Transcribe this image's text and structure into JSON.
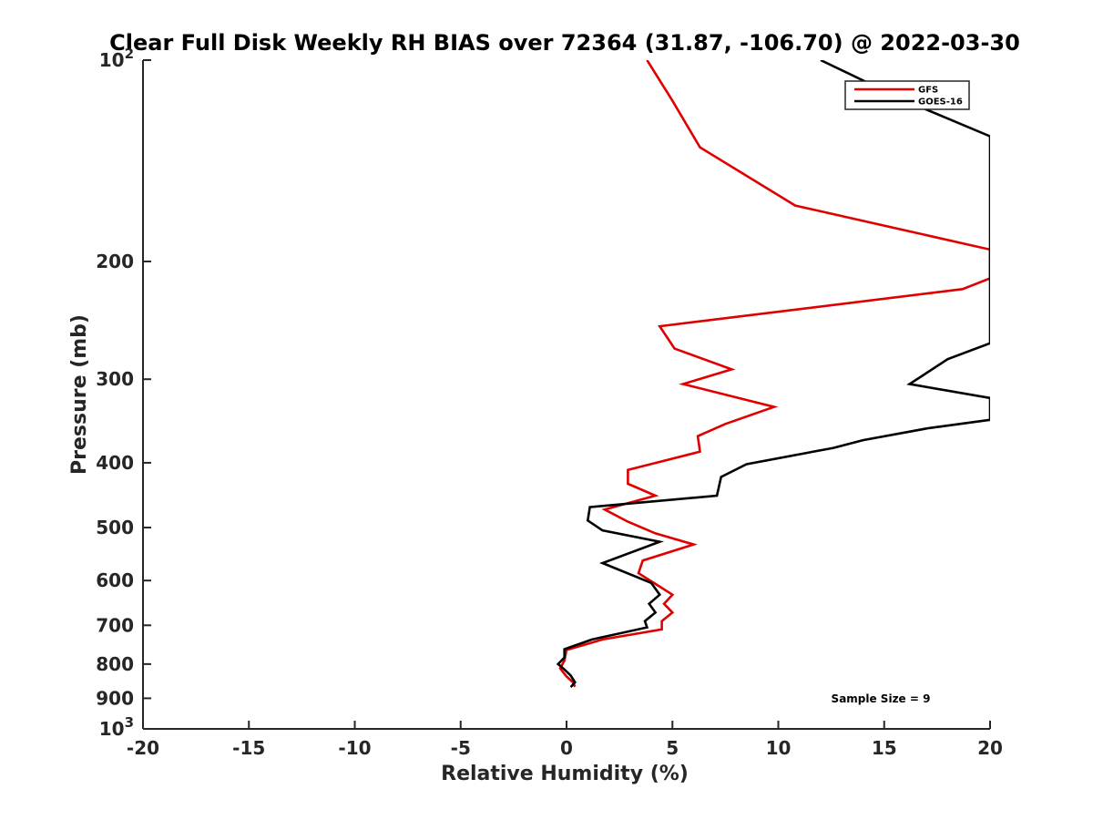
{
  "chart_data": {
    "type": "line",
    "title": "Clear Full Disk Weekly RH BIAS over 72364 (31.87, -106.70) @ 2022-03-30",
    "xlabel": "Relative Humidity (%)",
    "ylabel": "Pressure (mb)",
    "xlim": [
      -20,
      20
    ],
    "ylim": [
      100,
      1000
    ],
    "y_scale": "log",
    "y_reversed": true,
    "x_ticks": [
      -20,
      -15,
      -10,
      -5,
      0,
      5,
      10,
      15,
      20
    ],
    "x_tick_labels": [
      "-20",
      "-15",
      "-10",
      "-5",
      "0",
      "5",
      "10",
      "15",
      "20"
    ],
    "y_ticks": [
      100,
      200,
      300,
      400,
      500,
      600,
      700,
      800,
      900,
      1000
    ],
    "y_tick_labels": [
      {
        "base": "10",
        "exp": "2"
      },
      {
        "base": "200",
        "exp": ""
      },
      {
        "base": "300",
        "exp": ""
      },
      {
        "base": "400",
        "exp": ""
      },
      {
        "base": "500",
        "exp": ""
      },
      {
        "base": "600",
        "exp": ""
      },
      {
        "base": "700",
        "exp": ""
      },
      {
        "base": "800",
        "exp": ""
      },
      {
        "base": "900",
        "exp": ""
      },
      {
        "base": "10",
        "exp": "3"
      }
    ],
    "grid": false,
    "legend_position": "top-right",
    "annotation": "Sample Size = 9",
    "series": [
      {
        "name": "GFS",
        "color": "#e00000",
        "points": [
          [
            3.8,
            100
          ],
          [
            5,
            115
          ],
          [
            6.3,
            135
          ],
          [
            10.8,
            165
          ],
          [
            20,
            192
          ],
          [
            20,
            212
          ],
          [
            18.7,
            220
          ],
          [
            4.4,
            250
          ],
          [
            5.1,
            270
          ],
          [
            7.8,
            290
          ],
          [
            5.5,
            305
          ],
          [
            9.8,
            330
          ],
          [
            7.5,
            350
          ],
          [
            6.2,
            365
          ],
          [
            6.3,
            385
          ],
          [
            2.9,
            410
          ],
          [
            2.9,
            430
          ],
          [
            4.2,
            448
          ],
          [
            1.8,
            470
          ],
          [
            2.9,
            490
          ],
          [
            4.2,
            510
          ],
          [
            6.0,
            530
          ],
          [
            3.6,
            560
          ],
          [
            3.4,
            585
          ],
          [
            4.3,
            610
          ],
          [
            5.0,
            630
          ],
          [
            4.6,
            650
          ],
          [
            5.0,
            670
          ],
          [
            4.5,
            690
          ],
          [
            4.5,
            710
          ],
          [
            1.7,
            735
          ],
          [
            0.0,
            762
          ],
          [
            -0.1,
            790
          ],
          [
            -0.3,
            812
          ],
          [
            0.0,
            835
          ],
          [
            0.3,
            852
          ],
          [
            0.4,
            865
          ]
        ]
      },
      {
        "name": "GOES-16",
        "color": "#000000",
        "points": [
          [
            12.0,
            100
          ],
          [
            16.0,
            115
          ],
          [
            20,
            130
          ],
          [
            20,
            265
          ],
          [
            18.0,
            280
          ],
          [
            16.2,
            305
          ],
          [
            20,
            320
          ],
          [
            20,
            345
          ],
          [
            17.1,
            355
          ],
          [
            14.0,
            370
          ],
          [
            12.6,
            380
          ],
          [
            8.5,
            402
          ],
          [
            7.3,
            420
          ],
          [
            7.1,
            448
          ],
          [
            1.1,
            466
          ],
          [
            1.0,
            488
          ],
          [
            1.7,
            505
          ],
          [
            4.4,
            525
          ],
          [
            1.7,
            565
          ],
          [
            4.0,
            605
          ],
          [
            4.4,
            630
          ],
          [
            3.9,
            650
          ],
          [
            4.2,
            670
          ],
          [
            3.7,
            690
          ],
          [
            3.8,
            705
          ],
          [
            1.2,
            735
          ],
          [
            -0.1,
            760
          ],
          [
            -0.1,
            782
          ],
          [
            -0.4,
            800
          ],
          [
            -0.1,
            815
          ],
          [
            0.2,
            832
          ],
          [
            0.4,
            852
          ],
          [
            0.2,
            866
          ]
        ]
      }
    ]
  }
}
